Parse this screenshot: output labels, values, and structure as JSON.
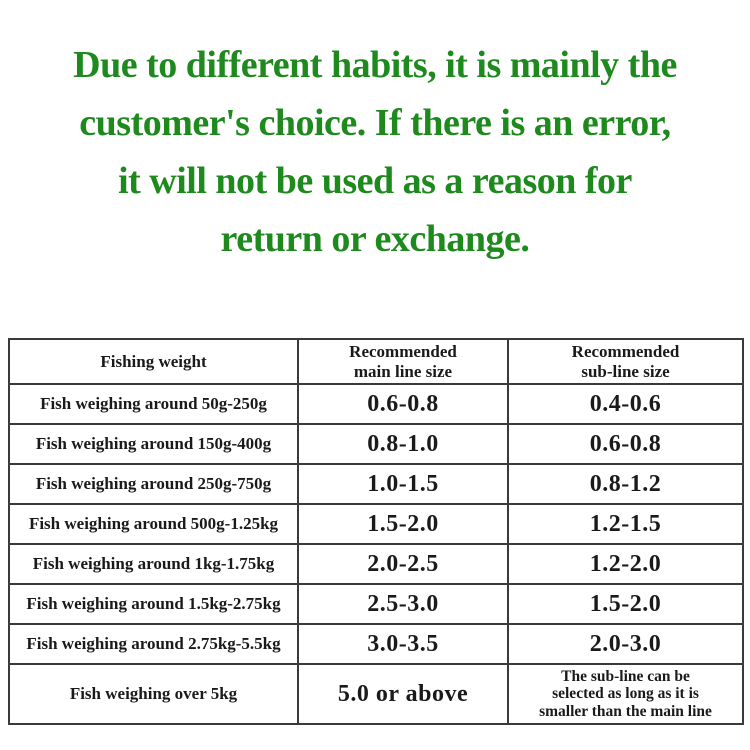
{
  "heading": {
    "color": "#1e8a1e",
    "lines": [
      "Due to different habits, it is mainly the",
      "customer's choice. If there is an error,",
      "it will not be used as a reason for",
      "return or exchange."
    ]
  },
  "table": {
    "border_color": "#3a3a3a",
    "text_color": "#1a1a1a",
    "headers": [
      "Fishing weight",
      "Recommended\nmain line size",
      "Recommended\nsub-line size"
    ],
    "rows": [
      {
        "label": "Fish weighing around 50g-250g",
        "main": "0.6-0.8",
        "sub": "0.4-0.6"
      },
      {
        "label": "Fish weighing around 150g-400g",
        "main": "0.8-1.0",
        "sub": "0.6-0.8"
      },
      {
        "label": "Fish weighing around 250g-750g",
        "main": "1.0-1.5",
        "sub": "0.8-1.2"
      },
      {
        "label": "Fish weighing around 500g-1.25kg",
        "main": "1.5-2.0",
        "sub": "1.2-1.5"
      },
      {
        "label": "Fish weighing around 1kg-1.75kg",
        "main": "2.0-2.5",
        "sub": "1.2-2.0"
      },
      {
        "label": "Fish weighing around 1.5kg-2.75kg",
        "main": "2.5-3.0",
        "sub": "1.5-2.0"
      },
      {
        "label": "Fish weighing around 2.75kg-5.5kg",
        "main": "3.0-3.5",
        "sub": "2.0-3.0"
      },
      {
        "label": "Fish weighing over 5kg",
        "main": "5.0 or above",
        "sub": "The sub-line can be\nselected as long as it is\nsmaller than the main line"
      }
    ]
  }
}
